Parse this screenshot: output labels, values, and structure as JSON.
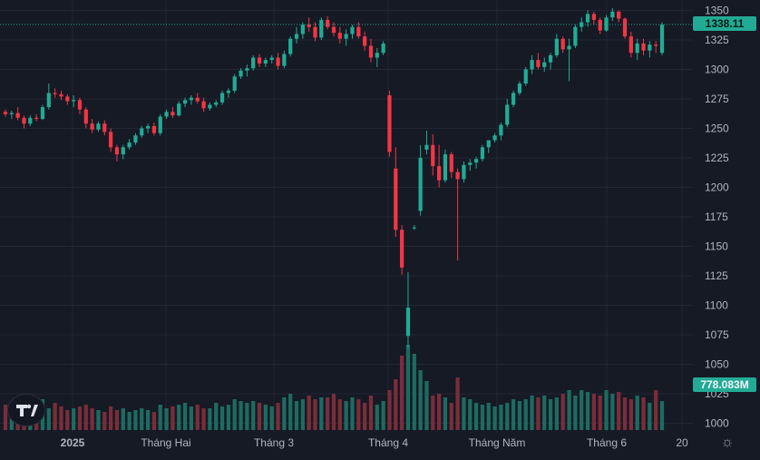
{
  "chart_data": {
    "type": "candlestick",
    "price_axis": {
      "ticks": [
        1000,
        1025,
        1050,
        1075,
        1100,
        1125,
        1150,
        1175,
        1200,
        1225,
        1250,
        1275,
        1300,
        1325,
        1350
      ],
      "range": [
        995,
        1352
      ]
    },
    "date_axis": {
      "labels": [
        "2025",
        "Tháng Hai",
        "Tháng 3",
        "Tháng 4",
        "Tháng Năm",
        "Tháng 6",
        "20"
      ]
    },
    "last_price": "1338.11",
    "volume_label": "778.083M",
    "colors": {
      "up": "#22ab94",
      "down": "#f23645",
      "up_volume": "#1d6b61",
      "down_volume": "#7a2d3a",
      "background": "#161a25",
      "grid": "#232733"
    },
    "candles": [
      {
        "o": 1264,
        "h": 1266,
        "l": 1260,
        "c": 1262
      },
      {
        "o": 1262,
        "h": 1265,
        "l": 1258,
        "c": 1263
      },
      {
        "o": 1263,
        "h": 1268,
        "l": 1257,
        "c": 1259
      },
      {
        "o": 1259,
        "h": 1261,
        "l": 1250,
        "c": 1254
      },
      {
        "o": 1254,
        "h": 1261,
        "l": 1252,
        "c": 1259
      },
      {
        "o": 1259,
        "h": 1262,
        "l": 1256,
        "c": 1258
      },
      {
        "o": 1258,
        "h": 1270,
        "l": 1257,
        "c": 1268
      },
      {
        "o": 1268,
        "h": 1288,
        "l": 1266,
        "c": 1280
      },
      {
        "o": 1280,
        "h": 1284,
        "l": 1276,
        "c": 1279
      },
      {
        "o": 1279,
        "h": 1282,
        "l": 1274,
        "c": 1277
      },
      {
        "o": 1277,
        "h": 1279,
        "l": 1270,
        "c": 1273
      },
      {
        "o": 1273,
        "h": 1278,
        "l": 1268,
        "c": 1274
      },
      {
        "o": 1274,
        "h": 1276,
        "l": 1262,
        "c": 1266
      },
      {
        "o": 1266,
        "h": 1268,
        "l": 1250,
        "c": 1254
      },
      {
        "o": 1254,
        "h": 1258,
        "l": 1246,
        "c": 1249
      },
      {
        "o": 1249,
        "h": 1256,
        "l": 1247,
        "c": 1254
      },
      {
        "o": 1254,
        "h": 1257,
        "l": 1244,
        "c": 1247
      },
      {
        "o": 1247,
        "h": 1250,
        "l": 1230,
        "c": 1234
      },
      {
        "o": 1234,
        "h": 1236,
        "l": 1222,
        "c": 1228
      },
      {
        "o": 1228,
        "h": 1236,
        "l": 1224,
        "c": 1234
      },
      {
        "o": 1234,
        "h": 1241,
        "l": 1232,
        "c": 1238
      },
      {
        "o": 1238,
        "h": 1246,
        "l": 1236,
        "c": 1244
      },
      {
        "o": 1244,
        "h": 1252,
        "l": 1242,
        "c": 1250
      },
      {
        "o": 1250,
        "h": 1254,
        "l": 1246,
        "c": 1252
      },
      {
        "o": 1252,
        "h": 1255,
        "l": 1244,
        "c": 1246
      },
      {
        "o": 1246,
        "h": 1262,
        "l": 1244,
        "c": 1260
      },
      {
        "o": 1260,
        "h": 1266,
        "l": 1258,
        "c": 1264
      },
      {
        "o": 1264,
        "h": 1268,
        "l": 1259,
        "c": 1261
      },
      {
        "o": 1261,
        "h": 1273,
        "l": 1260,
        "c": 1271
      },
      {
        "o": 1271,
        "h": 1276,
        "l": 1268,
        "c": 1274
      },
      {
        "o": 1274,
        "h": 1278,
        "l": 1270,
        "c": 1276
      },
      {
        "o": 1276,
        "h": 1280,
        "l": 1271,
        "c": 1273
      },
      {
        "o": 1273,
        "h": 1276,
        "l": 1264,
        "c": 1267
      },
      {
        "o": 1267,
        "h": 1272,
        "l": 1265,
        "c": 1270
      },
      {
        "o": 1270,
        "h": 1274,
        "l": 1268,
        "c": 1272
      },
      {
        "o": 1272,
        "h": 1282,
        "l": 1270,
        "c": 1280
      },
      {
        "o": 1280,
        "h": 1284,
        "l": 1276,
        "c": 1282
      },
      {
        "o": 1282,
        "h": 1296,
        "l": 1280,
        "c": 1294
      },
      {
        "o": 1294,
        "h": 1301,
        "l": 1292,
        "c": 1299
      },
      {
        "o": 1299,
        "h": 1304,
        "l": 1294,
        "c": 1301
      },
      {
        "o": 1301,
        "h": 1312,
        "l": 1299,
        "c": 1310
      },
      {
        "o": 1310,
        "h": 1313,
        "l": 1302,
        "c": 1305
      },
      {
        "o": 1305,
        "h": 1310,
        "l": 1302,
        "c": 1308
      },
      {
        "o": 1308,
        "h": 1312,
        "l": 1305,
        "c": 1310
      },
      {
        "o": 1310,
        "h": 1314,
        "l": 1300,
        "c": 1303
      },
      {
        "o": 1303,
        "h": 1316,
        "l": 1301,
        "c": 1313
      },
      {
        "o": 1313,
        "h": 1328,
        "l": 1311,
        "c": 1326
      },
      {
        "o": 1326,
        "h": 1336,
        "l": 1322,
        "c": 1330
      },
      {
        "o": 1330,
        "h": 1340,
        "l": 1326,
        "c": 1338
      },
      {
        "o": 1338,
        "h": 1344,
        "l": 1332,
        "c": 1336
      },
      {
        "o": 1336,
        "h": 1340,
        "l": 1324,
        "c": 1327
      },
      {
        "o": 1327,
        "h": 1344,
        "l": 1325,
        "c": 1342
      },
      {
        "o": 1342,
        "h": 1345,
        "l": 1334,
        "c": 1336
      },
      {
        "o": 1336,
        "h": 1340,
        "l": 1328,
        "c": 1331
      },
      {
        "o": 1331,
        "h": 1336,
        "l": 1322,
        "c": 1326
      },
      {
        "o": 1326,
        "h": 1334,
        "l": 1320,
        "c": 1330
      },
      {
        "o": 1330,
        "h": 1338,
        "l": 1326,
        "c": 1336
      },
      {
        "o": 1336,
        "h": 1340,
        "l": 1326,
        "c": 1328
      },
      {
        "o": 1328,
        "h": 1332,
        "l": 1316,
        "c": 1320
      },
      {
        "o": 1320,
        "h": 1326,
        "l": 1306,
        "c": 1310
      },
      {
        "o": 1310,
        "h": 1318,
        "l": 1302,
        "c": 1314
      },
      {
        "o": 1314,
        "h": 1324,
        "l": 1312,
        "c": 1322
      },
      {
        "o": 1278,
        "h": 1282,
        "l": 1226,
        "c": 1230
      },
      {
        "o": 1216,
        "h": 1234,
        "l": 1158,
        "c": 1164
      },
      {
        "o": 1164,
        "h": 1168,
        "l": 1126,
        "c": 1132
      },
      {
        "o": 1074,
        "h": 1128,
        "l": 1064,
        "c": 1098
      },
      {
        "o": 1166,
        "h": 1168,
        "l": 1164,
        "c": 1166
      },
      {
        "o": 1180,
        "h": 1236,
        "l": 1176,
        "c": 1225
      },
      {
        "o": 1232,
        "h": 1248,
        "l": 1228,
        "c": 1236
      },
      {
        "o": 1236,
        "h": 1245,
        "l": 1210,
        "c": 1218
      },
      {
        "o": 1218,
        "h": 1236,
        "l": 1200,
        "c": 1206
      },
      {
        "o": 1206,
        "h": 1232,
        "l": 1204,
        "c": 1228
      },
      {
        "o": 1228,
        "h": 1230,
        "l": 1208,
        "c": 1213
      },
      {
        "o": 1213,
        "h": 1216,
        "l": 1138,
        "c": 1207
      },
      {
        "o": 1207,
        "h": 1222,
        "l": 1204,
        "c": 1219
      },
      {
        "o": 1219,
        "h": 1224,
        "l": 1214,
        "c": 1221
      },
      {
        "o": 1221,
        "h": 1226,
        "l": 1216,
        "c": 1224
      },
      {
        "o": 1224,
        "h": 1236,
        "l": 1222,
        "c": 1234
      },
      {
        "o": 1234,
        "h": 1240,
        "l": 1229,
        "c": 1240
      },
      {
        "o": 1240,
        "h": 1246,
        "l": 1238,
        "c": 1244
      },
      {
        "o": 1244,
        "h": 1255,
        "l": 1240,
        "c": 1253
      },
      {
        "o": 1253,
        "h": 1275,
        "l": 1251,
        "c": 1270
      },
      {
        "o": 1270,
        "h": 1282,
        "l": 1268,
        "c": 1280
      },
      {
        "o": 1280,
        "h": 1290,
        "l": 1278,
        "c": 1288
      },
      {
        "o": 1288,
        "h": 1302,
        "l": 1286,
        "c": 1300
      },
      {
        "o": 1300,
        "h": 1312,
        "l": 1296,
        "c": 1308
      },
      {
        "o": 1308,
        "h": 1314,
        "l": 1300,
        "c": 1302
      },
      {
        "o": 1302,
        "h": 1310,
        "l": 1298,
        "c": 1306
      },
      {
        "o": 1306,
        "h": 1314,
        "l": 1300,
        "c": 1312
      },
      {
        "o": 1312,
        "h": 1330,
        "l": 1310,
        "c": 1326
      },
      {
        "o": 1326,
        "h": 1328,
        "l": 1314,
        "c": 1317
      },
      {
        "o": 1317,
        "h": 1326,
        "l": 1290,
        "c": 1320
      },
      {
        "o": 1320,
        "h": 1338,
        "l": 1318,
        "c": 1336
      },
      {
        "o": 1336,
        "h": 1344,
        "l": 1332,
        "c": 1340
      },
      {
        "o": 1340,
        "h": 1350,
        "l": 1336,
        "c": 1347
      },
      {
        "o": 1347,
        "h": 1349,
        "l": 1338,
        "c": 1342
      },
      {
        "o": 1342,
        "h": 1344,
        "l": 1330,
        "c": 1333
      },
      {
        "o": 1333,
        "h": 1346,
        "l": 1332,
        "c": 1344
      },
      {
        "o": 1344,
        "h": 1352,
        "l": 1341,
        "c": 1349
      },
      {
        "o": 1349,
        "h": 1350,
        "l": 1340,
        "c": 1343
      },
      {
        "o": 1343,
        "h": 1344,
        "l": 1326,
        "c": 1328
      },
      {
        "o": 1328,
        "h": 1332,
        "l": 1310,
        "c": 1314
      },
      {
        "o": 1314,
        "h": 1326,
        "l": 1308,
        "c": 1322
      },
      {
        "o": 1322,
        "h": 1326,
        "l": 1312,
        "c": 1316
      },
      {
        "o": 1316,
        "h": 1324,
        "l": 1310,
        "c": 1321
      },
      {
        "o": 1321,
        "h": 1324,
        "l": 1314,
        "c": 1320
      },
      {
        "o": 1314,
        "h": 1340,
        "l": 1312,
        "c": 1338
      }
    ],
    "volumes": [
      28,
      20,
      25,
      22,
      30,
      18,
      34,
      24,
      30,
      26,
      22,
      24,
      26,
      28,
      24,
      22,
      20,
      26,
      22,
      24,
      20,
      22,
      24,
      22,
      20,
      28,
      24,
      26,
      28,
      30,
      26,
      28,
      24,
      24,
      30,
      26,
      28,
      34,
      32,
      30,
      32,
      30,
      28,
      26,
      30,
      36,
      40,
      32,
      34,
      38,
      34,
      36,
      36,
      40,
      34,
      32,
      36,
      34,
      30,
      38,
      28,
      32,
      44,
      56,
      82,
      94,
      84,
      66,
      54,
      38,
      40,
      36,
      30,
      58,
      36,
      34,
      30,
      28,
      30,
      26,
      28,
      30,
      34,
      32,
      34,
      38,
      36,
      38,
      34,
      36,
      40,
      44,
      38,
      44,
      42,
      40,
      38,
      44,
      40,
      42,
      36,
      34,
      38,
      36,
      30,
      44,
      32
    ]
  }
}
